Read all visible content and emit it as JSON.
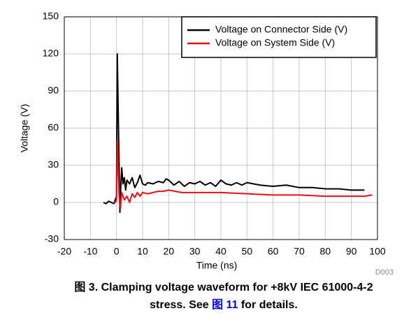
{
  "chart_data": {
    "type": "line",
    "xlabel": "Time (ns)",
    "ylabel": "Voltage (V)",
    "xlim": [
      -20,
      100
    ],
    "xticks": [
      -20,
      -10,
      0,
      10,
      20,
      30,
      40,
      50,
      60,
      70,
      80,
      90,
      100
    ],
    "ylim": [
      -30,
      150
    ],
    "yticks": [
      -30,
      0,
      30,
      60,
      90,
      120,
      150
    ],
    "grid": true,
    "legend": "upper right",
    "series": [
      {
        "name": "Voltage on Connector Side (V)",
        "color": "#000000",
        "x": [
          -5,
          -4,
          -3,
          -2,
          -1,
          -0.5,
          0,
          0.3,
          0.6,
          1,
          1.3,
          1.6,
          2,
          2.5,
          3,
          3.5,
          4,
          5,
          6,
          7,
          8,
          9,
          10,
          11,
          12,
          14,
          16,
          18,
          19,
          20,
          22,
          24,
          26,
          28,
          30,
          32,
          34,
          36,
          38,
          40,
          42,
          44,
          46,
          48,
          50,
          55,
          60,
          65,
          70,
          75,
          80,
          85,
          90,
          95
        ],
        "values": [
          0,
          -1,
          1,
          0,
          -1,
          2,
          5,
          120,
          80,
          30,
          -8,
          10,
          28,
          15,
          20,
          10,
          18,
          15,
          20,
          12,
          16,
          22,
          15,
          14,
          16,
          15,
          17,
          16,
          19,
          18,
          14,
          17,
          13,
          16,
          15,
          17,
          14,
          16,
          13,
          18,
          15,
          14,
          16,
          14,
          16,
          14,
          13,
          14,
          12,
          12,
          11,
          11,
          10,
          10
        ]
      },
      {
        "name": "Voltage on System Side (V)",
        "color": "#e8101a",
        "x": [
          -1,
          -0.5,
          0,
          0.3,
          0.6,
          1,
          1.5,
          2,
          3,
          4,
          5,
          6,
          7,
          8,
          9,
          10,
          12,
          14,
          16,
          18,
          20,
          25,
          30,
          40,
          50,
          60,
          70,
          80,
          90,
          95,
          98
        ],
        "values": [
          0,
          0,
          2,
          50,
          30,
          5,
          -5,
          8,
          2,
          5,
          0,
          7,
          4,
          8,
          5,
          8,
          7,
          8,
          9,
          9,
          10,
          8,
          8,
          8,
          7,
          6,
          6,
          5,
          5,
          5,
          6
        ]
      }
    ],
    "code": "D003",
    "caption": {
      "line1": "图 3. Clamping voltage waveform for +8kV IEC 61000-4-2",
      "line2_start": "stress. See ",
      "link": "图 11",
      "line2_end": " for details."
    }
  }
}
